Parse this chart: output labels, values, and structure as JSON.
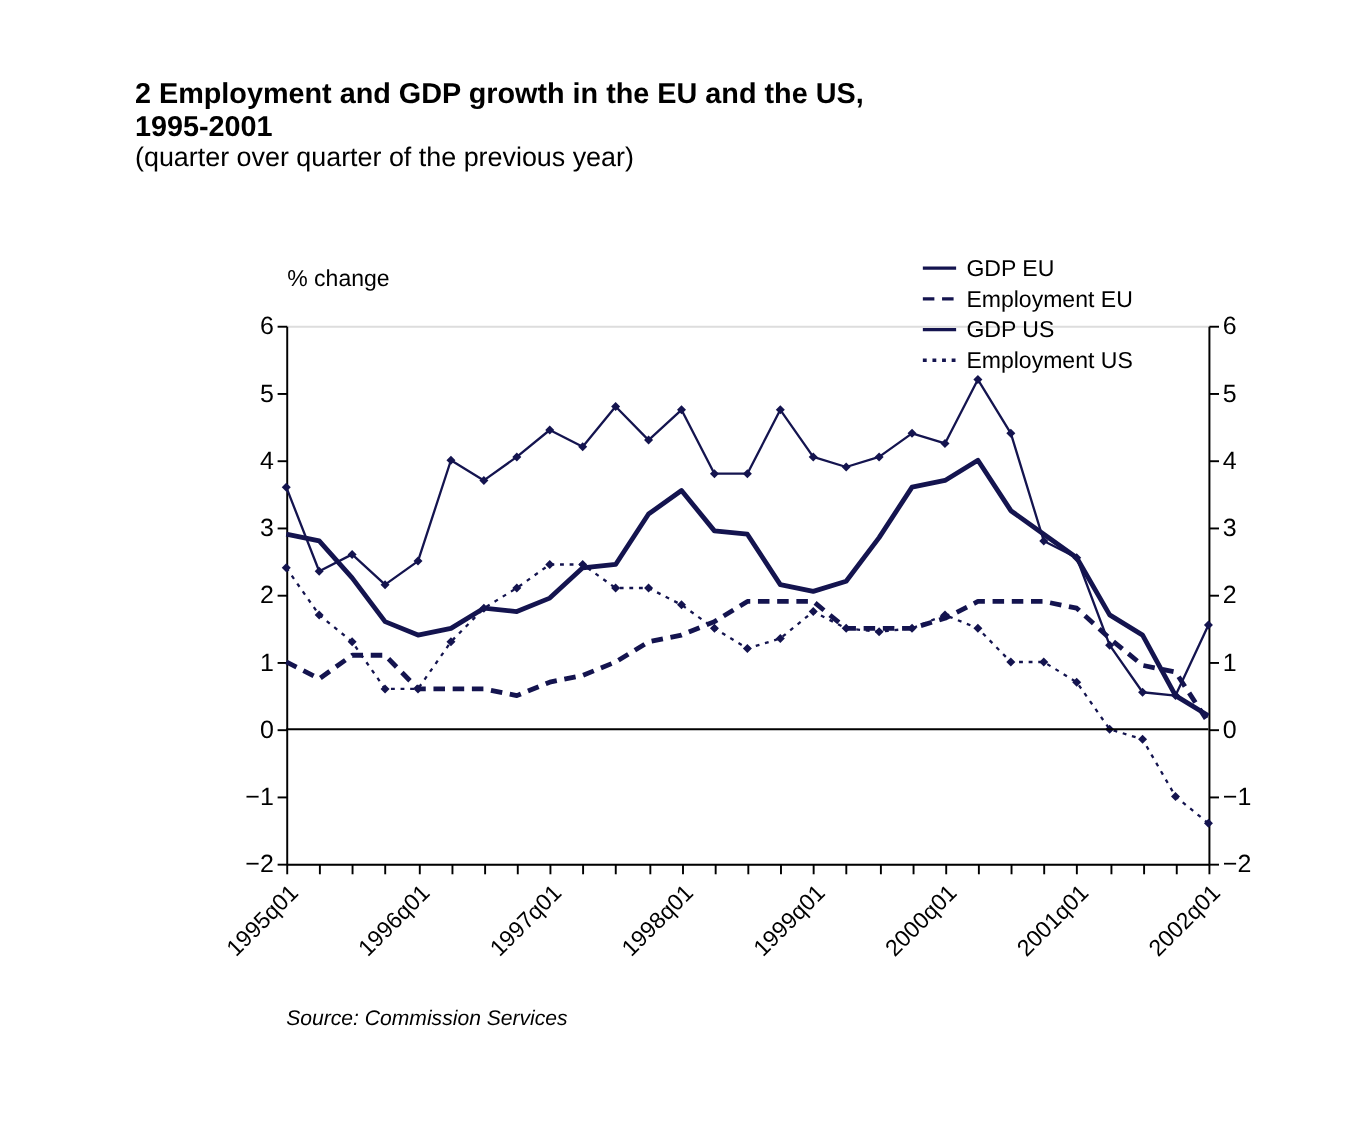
{
  "chart_data": {
    "type": "line",
    "title": "2      Employment and GDP growth in the EU and the US, 1995-2001",
    "subtitle": "(quarter over quarter of the previous year)",
    "ylabel": "% change",
    "annotations": [
      "Source: Commission Services"
    ],
    "categories": [
      "1995q01",
      null,
      null,
      null,
      "1996q01",
      null,
      null,
      null,
      "1997q01",
      null,
      null,
      null,
      "1998q01",
      null,
      null,
      null,
      "1999q01",
      null,
      null,
      null,
      "2000q01",
      null,
      null,
      null,
      "2001q01",
      null,
      null,
      null,
      "2002q01"
    ],
    "series": [
      {
        "name": "GDP EU",
        "color": "#14144f",
        "line_style": "solid",
        "marker": "none",
        "values": [
          2.9,
          2.8,
          2.25,
          1.6,
          1.4,
          1.5,
          1.8,
          1.75,
          1.95,
          2.4,
          2.45,
          3.2,
          3.55,
          2.95,
          2.9,
          2.15,
          2.05,
          2.2,
          2.85,
          3.6,
          3.7,
          4.0,
          3.25,
          2.9,
          2.55,
          1.7,
          1.4,
          0.5,
          0.2
        ]
      },
      {
        "name": "Employment EU",
        "color": "#14144f",
        "line_style": "dashed",
        "marker": "none",
        "values": [
          1.0,
          0.75,
          1.1,
          1.1,
          0.6,
          0.6,
          0.6,
          0.5,
          0.7,
          0.8,
          1.0,
          1.3,
          1.4,
          1.6,
          1.9,
          1.9,
          1.9,
          1.5,
          1.5,
          1.5,
          1.65,
          1.9,
          1.9,
          1.9,
          1.8,
          1.35,
          0.95,
          0.85,
          0.1
        ]
      },
      {
        "name": "GDP US",
        "color": "#14144f",
        "line_style": "solid",
        "marker": "diamond",
        "values": [
          3.6,
          2.35,
          2.6,
          2.15,
          2.5,
          4.0,
          3.7,
          4.05,
          4.45,
          4.2,
          4.8,
          4.3,
          4.75,
          3.8,
          3.8,
          4.75,
          4.05,
          3.9,
          4.05,
          4.4,
          4.25,
          5.2,
          4.4,
          2.8,
          2.55,
          1.25,
          0.55,
          0.5,
          1.55
        ]
      },
      {
        "name": "Employment US",
        "color": "#14144f",
        "line_style": "dotted",
        "marker": "diamond",
        "values": [
          2.4,
          1.7,
          1.3,
          0.6,
          0.6,
          1.3,
          1.8,
          2.1,
          2.45,
          2.45,
          2.1,
          2.1,
          1.85,
          1.5,
          1.2,
          1.35,
          1.75,
          1.5,
          1.45,
          1.5,
          1.7,
          1.5,
          1.0,
          1.0,
          0.7,
          0.0,
          -0.15,
          -1.0,
          -1.4
        ]
      }
    ],
    "ylim": [
      -2,
      6
    ],
    "yticks": [
      -2,
      -1,
      0,
      1,
      2,
      3,
      4,
      5,
      6
    ],
    "y2lim": [
      -2,
      6
    ],
    "y2ticks": [
      -2,
      -1,
      0,
      1,
      2,
      3,
      4,
      5,
      6
    ],
    "ref_lines": [
      {
        "axis": "y",
        "value": 0,
        "label": null
      }
    ],
    "grid": false,
    "legend": "top right"
  }
}
